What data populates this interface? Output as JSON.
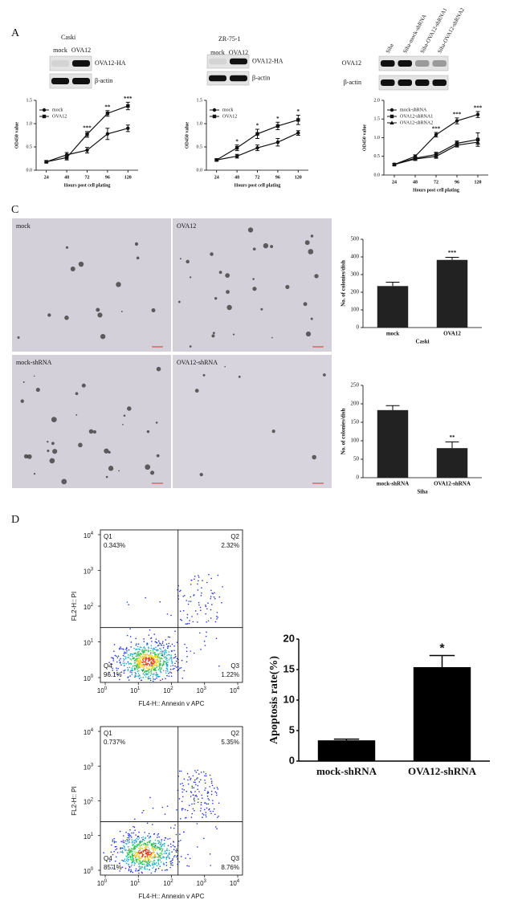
{
  "panel_labels": [
    "A",
    "C",
    "D"
  ],
  "blots": [
    {
      "title": "Caski",
      "lanes": [
        "mock",
        "OVA12"
      ],
      "rows": [
        "OVA12-HA",
        "β-actin"
      ]
    },
    {
      "title": "ZR-75-1",
      "lanes": [
        "mock",
        "OVA12"
      ],
      "rows": [
        "OVA12-HA",
        "β-actin"
      ]
    },
    {
      "lanes": [
        "Siha",
        "Siha-mock-shRNA",
        "Siha-OVA12-shRNA1",
        "Siha-OVA12-shRNA2"
      ],
      "rows": [
        "OVA12",
        "β-actin"
      ]
    }
  ],
  "micrographs": [
    "mock",
    "OVA12",
    "mock-shRNA",
    "OVA12-shRNA"
  ],
  "flow_plots": [
    {
      "x_label": "FL4-H:: Annexin v APC",
      "y_label": "FL2-H:: PI",
      "tick_base": "10",
      "tick_exponents": [
        0,
        1,
        2,
        3,
        4
      ],
      "quadrants": [
        {
          "name": "Q1",
          "percent": "0.343%"
        },
        {
          "name": "Q2",
          "percent": "2.32%"
        },
        {
          "name": "Q4",
          "percent": "96.1%"
        },
        {
          "name": "Q3",
          "percent": "1.22%"
        }
      ]
    },
    {
      "x_label": "FL4-H:: Annexin v APC",
      "y_label": "FL2-H:: PI",
      "tick_base": "10",
      "tick_exponents": [
        0,
        1,
        2,
        3,
        4
      ],
      "quadrants": [
        {
          "name": "Q1",
          "percent": "0.737%"
        },
        {
          "name": "Q2",
          "percent": "5.35%"
        },
        {
          "name": "Q4",
          "percent": "85.1%"
        },
        {
          "name": "Q3",
          "percent": "8.76%"
        }
      ]
    }
  ],
  "chart_data": [
    {
      "type": "line",
      "x_label": "Hours post cell plating",
      "y_label": "OD450 value",
      "x": [
        24,
        48,
        72,
        96,
        120
      ],
      "xlim": [
        12,
        132
      ],
      "xticks": [
        24,
        48,
        72,
        96,
        120
      ],
      "ylim": [
        0,
        1.5
      ],
      "yticks": [
        {
          "value": 0,
          "label": "0.0"
        },
        {
          "value": 0.5,
          "label": "0.5"
        },
        {
          "value": 1,
          "label": "1.0"
        },
        {
          "value": 1.5,
          "label": "1.5"
        }
      ],
      "legend": "upper left",
      "series": [
        {
          "name": "mock",
          "marker": "circle",
          "color": "#111",
          "values": [
            0.18,
            0.33,
            0.43,
            0.78,
            0.9
          ],
          "errors": [
            0.02,
            0.05,
            0.06,
            0.12,
            0.07
          ]
        },
        {
          "name": "OVA12",
          "marker": "square",
          "color": "#111",
          "values": [
            0.18,
            0.27,
            0.77,
            1.22,
            1.38
          ],
          "errors": [
            0.02,
            0.05,
            0.06,
            0.06,
            0.08
          ]
        }
      ],
      "annotations": [
        null,
        null,
        "***",
        "**",
        "***"
      ]
    },
    {
      "type": "line",
      "x_label": "Hours post cell plating",
      "y_label": "OD450 value",
      "x": [
        24,
        48,
        72,
        96,
        120
      ],
      "xlim": [
        12,
        132
      ],
      "xticks": [
        24,
        48,
        72,
        96,
        120
      ],
      "ylim": [
        0,
        1.5
      ],
      "yticks": [
        {
          "value": 0,
          "label": "0.0"
        },
        {
          "value": 0.5,
          "label": "0.5"
        },
        {
          "value": 1,
          "label": "1.0"
        },
        {
          "value": 1.5,
          "label": "1.5"
        }
      ],
      "legend": "upper left",
      "series": [
        {
          "name": "mock",
          "marker": "circle",
          "color": "#111",
          "values": [
            0.22,
            0.3,
            0.48,
            0.6,
            0.8
          ],
          "errors": [
            0.02,
            0.04,
            0.06,
            0.08,
            0.05
          ]
        },
        {
          "name": "OVA12",
          "marker": "square",
          "color": "#111",
          "values": [
            0.22,
            0.48,
            0.78,
            0.95,
            1.08
          ],
          "errors": [
            0.02,
            0.06,
            0.1,
            0.08,
            0.1
          ]
        }
      ],
      "annotations": [
        null,
        "*",
        "*",
        "*",
        "*"
      ]
    },
    {
      "type": "line",
      "x_label": "Hours post cell plating",
      "y_label": "OD450 value",
      "x": [
        24,
        48,
        72,
        96,
        120
      ],
      "xlim": [
        12,
        132
      ],
      "xticks": [
        24,
        48,
        72,
        96,
        120
      ],
      "ylim": [
        0,
        2
      ],
      "yticks": [
        {
          "value": 0,
          "label": "0.0"
        },
        {
          "value": 0.5,
          "label": "0.5"
        },
        {
          "value": 1,
          "label": "1.0"
        },
        {
          "value": 1.5,
          "label": "1.5"
        },
        {
          "value": 2,
          "label": "2.0"
        }
      ],
      "legend": "upper left",
      "series": [
        {
          "name": "mock-shRNA",
          "marker": "circle",
          "color": "#111",
          "values": [
            0.28,
            0.5,
            1.08,
            1.45,
            1.62
          ],
          "errors": [
            0.03,
            0.04,
            0.06,
            0.08,
            0.08
          ]
        },
        {
          "name": "OVA12-shRNA1",
          "marker": "square",
          "color": "#111",
          "values": [
            0.28,
            0.45,
            0.55,
            0.85,
            0.95
          ],
          "errors": [
            0.03,
            0.04,
            0.06,
            0.06,
            0.18
          ]
        },
        {
          "name": "OVA12-shRNA2",
          "marker": "triangle",
          "color": "#111",
          "values": [
            0.28,
            0.43,
            0.5,
            0.8,
            0.88
          ],
          "errors": [
            0.03,
            0.04,
            0.05,
            0.05,
            0.06
          ]
        }
      ],
      "annotations": [
        null,
        null,
        "***",
        "***",
        "***"
      ]
    },
    {
      "type": "bar",
      "x_label": "Caski",
      "y_label": "No. of colonies/dish",
      "categories": [
        "mock",
        "OVA12"
      ],
      "values": [
        235,
        383
      ],
      "errors": [
        22,
        15
      ],
      "color": "#222",
      "ylim": [
        0,
        500
      ],
      "yticks": [
        0,
        100,
        200,
        300,
        400,
        500
      ],
      "annotations": [
        null,
        "***"
      ]
    },
    {
      "type": "bar",
      "x_label": "Siha",
      "y_label": "No. of colonies/dish",
      "categories": [
        "mock-shRNA",
        "OVA12-shRNA"
      ],
      "values": [
        183,
        80
      ],
      "errors": [
        12,
        17
      ],
      "color": "#222",
      "ylim": [
        0,
        250
      ],
      "yticks": [
        0,
        50,
        100,
        150,
        200,
        250
      ],
      "annotations": [
        null,
        "**"
      ]
    },
    {
      "type": "bar",
      "y_label": "Apoptosis rate(%)",
      "categories": [
        "mock-shRNA",
        "OVA12-shRNA"
      ],
      "values": [
        3.4,
        15.4
      ],
      "errors": [
        0.2,
        1.9
      ],
      "color": "#000",
      "ylim": [
        0,
        20
      ],
      "yticks": [
        0,
        5,
        10,
        15,
        20
      ],
      "annotations": [
        null,
        "*"
      ]
    }
  ]
}
